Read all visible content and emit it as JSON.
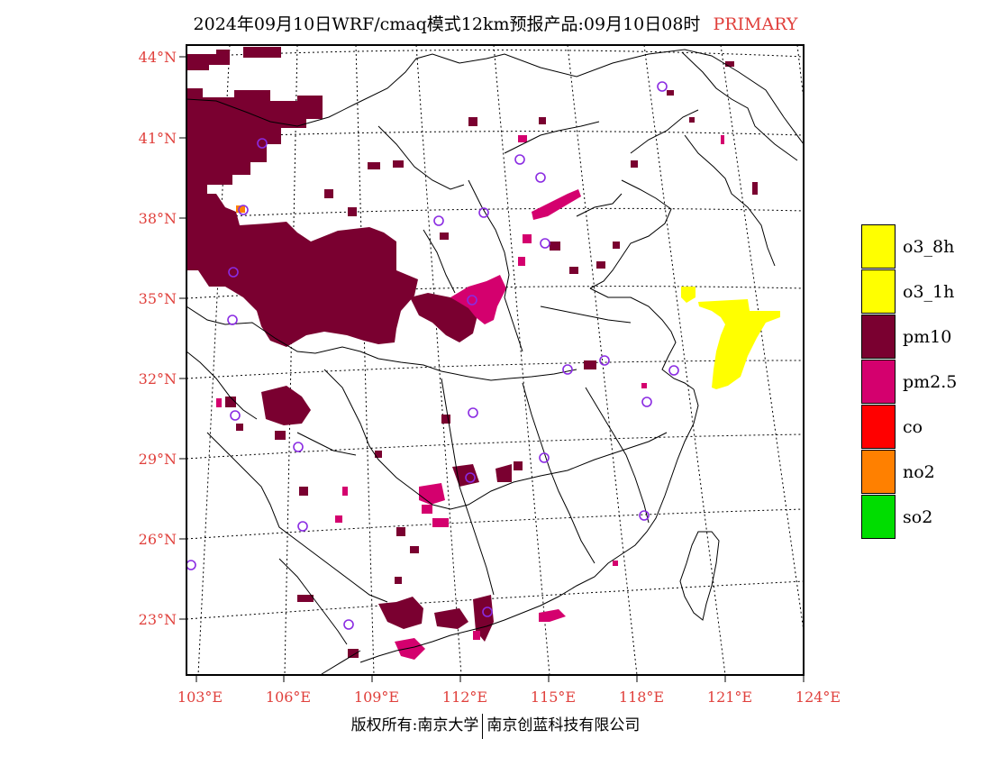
{
  "title": {
    "main": "2024年09月10日WRF/cmaq模式12km预报产品:09月10日08时",
    "tag": "PRIMARY",
    "tag_color": "#e0403c"
  },
  "axes": {
    "lat_labels": [
      "44°N",
      "41°N",
      "38°N",
      "35°N",
      "32°N",
      "29°N",
      "26°N",
      "23°N"
    ],
    "lon_labels": [
      "103°E",
      "106°E",
      "109°E",
      "112°E",
      "115°E",
      "118°E",
      "121°E",
      "124°E"
    ]
  },
  "legend": [
    {
      "label": "o3_8h",
      "color": "#ffff00"
    },
    {
      "label": "o3_1h",
      "color": "#ffff00"
    },
    {
      "label": "pm10",
      "color": "#7a0030"
    },
    {
      "label": "pm2.5",
      "color": "#d4006e"
    },
    {
      "label": "co",
      "color": "#ff0000"
    },
    {
      "label": "no2",
      "color": "#ff8000"
    },
    {
      "label": "so2",
      "color": "#00dd00"
    }
  ],
  "footer": {
    "left": "版权所有:南京大学",
    "right": "南京创蓝科技有限公司"
  },
  "map": {
    "layers": [
      "pm10",
      "pm2.5",
      "o3_1h",
      "no2"
    ],
    "station_marker": "circle-marker"
  }
}
